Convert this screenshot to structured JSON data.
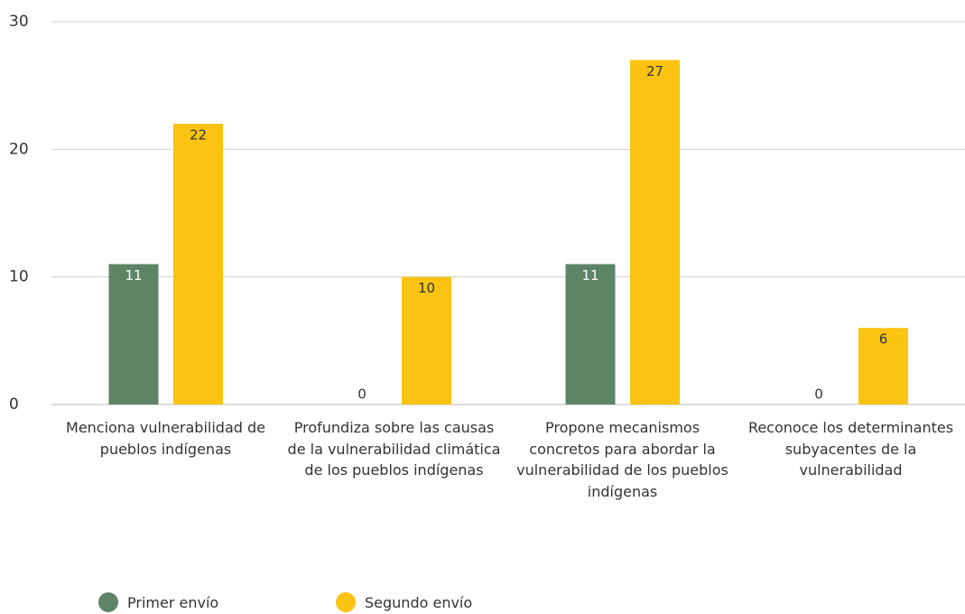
{
  "chart_data": {
    "type": "bar",
    "categories": [
      "Menciona vulnerabilidad de pueblos indígenas",
      "Profundiza sobre las causas de la vulnerabilidad climática de los pueblos indígenas",
      "Propone mecanismos concretos para abordar la vulnerabilidad de los pueblos indígenas",
      "Reconoce los determinantes subyacentes de la vulnerabilidad"
    ],
    "series": [
      {
        "name": "Primer envío",
        "color": "#5e8466",
        "values": [
          11,
          0,
          11,
          0
        ]
      },
      {
        "name": "Segundo envío",
        "color": "#fbc312",
        "values": [
          22,
          10,
          27,
          6
        ]
      }
    ],
    "ylim": [
      0,
      30
    ],
    "yticks": [
      0,
      10,
      20,
      30
    ],
    "grid": true,
    "legend": "bottom-left"
  }
}
